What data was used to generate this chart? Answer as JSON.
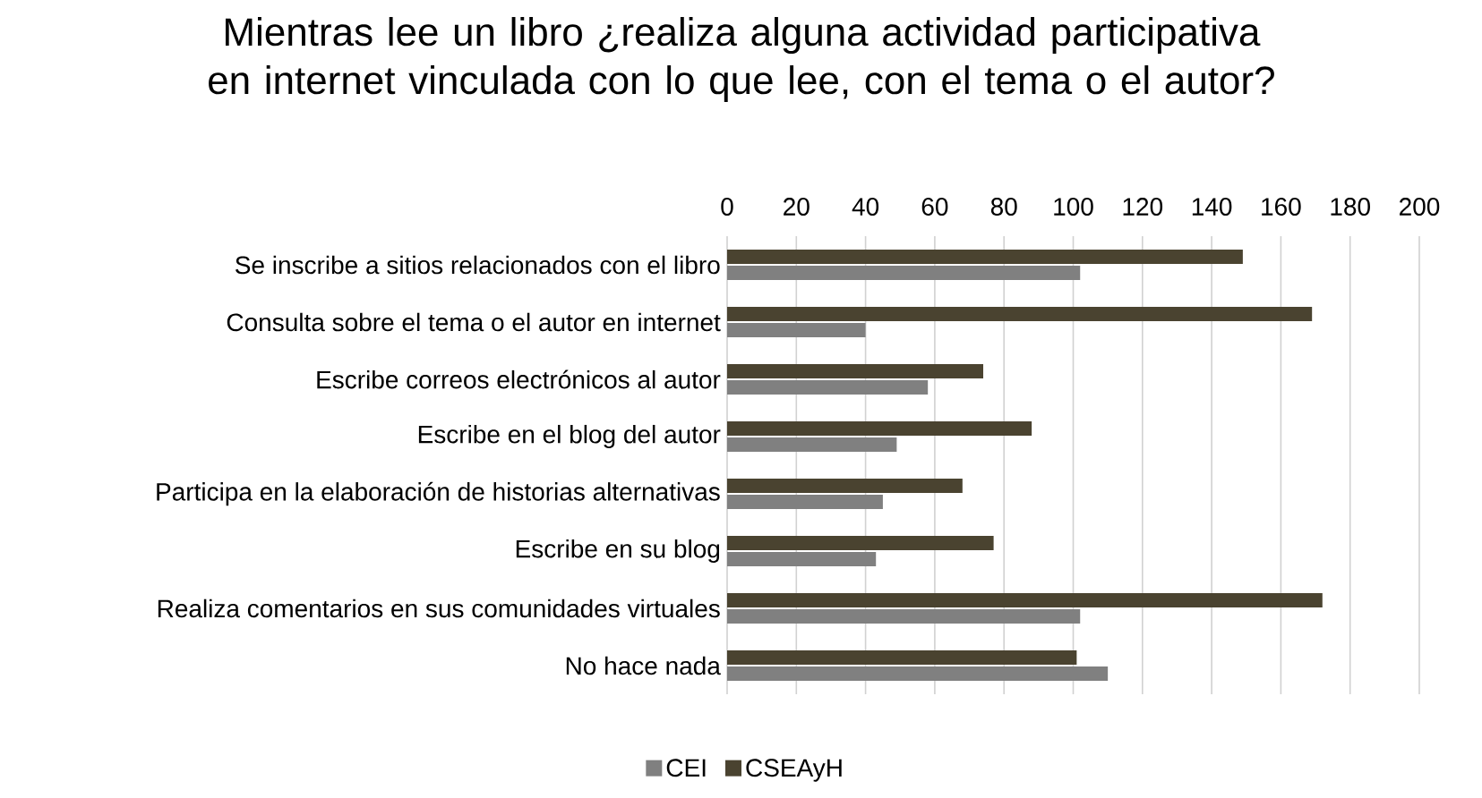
{
  "chart_data": {
    "type": "bar",
    "orientation": "horizontal",
    "title": "Mientras lee un libro ¿realiza alguna actividad participativa en internet vinculada con lo que lee, con el tema o el autor?",
    "categories": [
      "Se inscribe a sitios relacionados con el libro",
      "Consulta sobre el tema o el autor en internet",
      "Escribe correos electrónicos al autor",
      "Escribe en el blog del autor",
      "Participa en la elaboración de historias alternativas",
      "Escribe en su blog",
      "Realiza comentarios en sus comunidades virtuales",
      "No hace nada"
    ],
    "series": [
      {
        "name": "CEI",
        "color": "#808080",
        "values": [
          102,
          40,
          58,
          49,
          45,
          43,
          102,
          110
        ]
      },
      {
        "name": "CSEAyH",
        "color": "#4a4330",
        "values": [
          149,
          169,
          74,
          88,
          68,
          77,
          172,
          101
        ]
      }
    ],
    "xlim": [
      0,
      200
    ],
    "xticks": [
      0,
      20,
      40,
      60,
      80,
      100,
      120,
      140,
      160,
      180,
      200
    ],
    "grid": "x",
    "legend": "bottom"
  }
}
